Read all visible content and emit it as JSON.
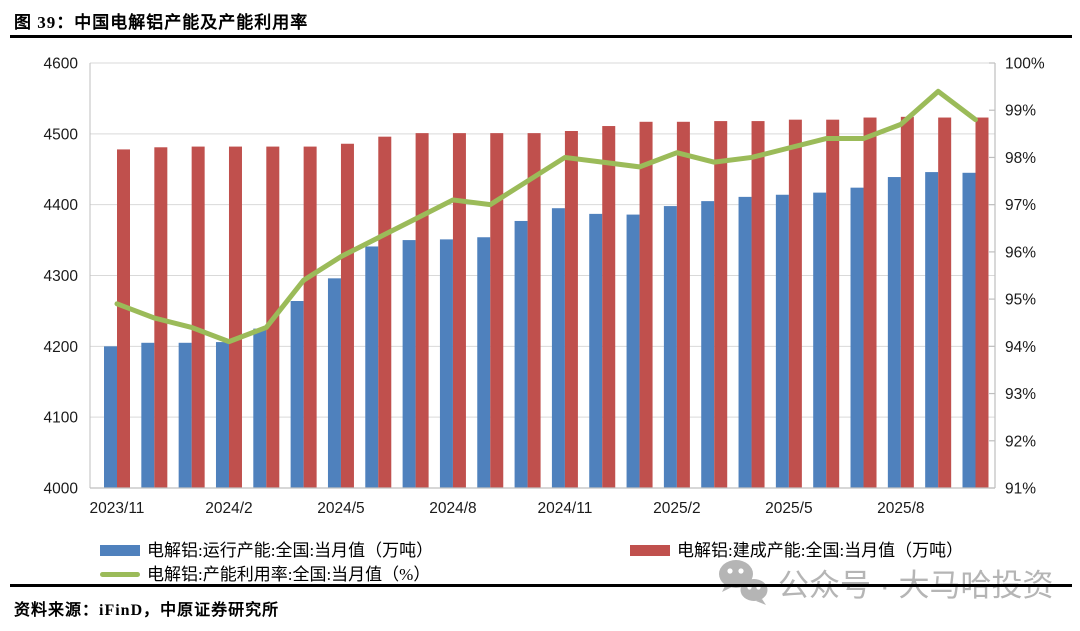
{
  "page": {
    "title": "图 39：中国电解铝产能及产能利用率",
    "source": "资料来源：iFinD，中原证券研究所",
    "watermark_text": "公众号 · 大马哈投资"
  },
  "colors": {
    "operating_bar": "#4F81BD",
    "built_bar": "#C0504D",
    "utilization_line": "#9BBB59",
    "gridline": "#D9D9D9",
    "axis_line": "#BFBFBF",
    "tick_text": "#1a1a1a",
    "rule": "#000000",
    "watermark": "#b5b5b5"
  },
  "chart_data": {
    "type": "bar",
    "title": "图 39：中国电解铝产能及产能利用率",
    "categories": [
      "2023/11",
      "2023/12",
      "2024/1",
      "2024/2",
      "2024/3",
      "2024/4",
      "2024/5",
      "2024/6",
      "2024/7",
      "2024/8",
      "2024/9",
      "2024/10",
      "2024/11",
      "2024/12",
      "2025/1",
      "2025/2",
      "2025/3",
      "2025/4",
      "2025/5",
      "2025/6",
      "2025/7",
      "2025/8",
      "2025/9",
      "2025/10"
    ],
    "series": [
      {
        "name": "电解铝:运行产能:全国:当月值（万吨）",
        "kind": "bar",
        "axis": "left",
        "color": "#4F81BD",
        "values": [
          4200,
          4205,
          4205,
          4206,
          4225,
          4264,
          4296,
          4341,
          4350,
          4351,
          4354,
          4377,
          4395,
          4387,
          4386,
          4398,
          4405,
          4411,
          4414,
          4417,
          4424,
          4439,
          4446,
          4445
        ]
      },
      {
        "name": "电解铝:建成产能:全国:当月值（万吨）",
        "kind": "bar",
        "axis": "left",
        "color": "#C0504D",
        "values": [
          4478,
          4481,
          4482,
          4482,
          4482,
          4482,
          4486,
          4496,
          4501,
          4501,
          4501,
          4501,
          4504,
          4511,
          4517,
          4517,
          4518,
          4518,
          4520,
          4520,
          4523,
          4524,
          4523,
          4523
        ]
      },
      {
        "name": "电解铝:产能利用率:全国:当月值（%）",
        "kind": "line",
        "axis": "right",
        "color": "#9BBB59",
        "values": [
          94.9,
          94.6,
          94.4,
          94.1,
          94.4,
          95.4,
          95.9,
          96.3,
          96.7,
          97.1,
          97.0,
          97.5,
          98.0,
          97.9,
          97.8,
          98.1,
          97.9,
          98.0,
          98.2,
          98.4,
          98.4,
          98.7,
          99.4,
          98.8
        ]
      }
    ],
    "left_axis": {
      "min": 4000,
      "max": 4600,
      "step": 100,
      "tick_labels": [
        "4000",
        "4100",
        "4200",
        "4300",
        "4400",
        "4500",
        "4600"
      ]
    },
    "right_axis": {
      "min": 91,
      "max": 100,
      "step": 1,
      "tick_labels": [
        "91%",
        "92%",
        "93%",
        "94%",
        "95%",
        "96%",
        "97%",
        "98%",
        "99%",
        "100%"
      ]
    },
    "x_axis": {
      "tick_labels": [
        "2023/11",
        "2024/2",
        "2024/5",
        "2024/8",
        "2024/11",
        "2025/2",
        "2025/5",
        "2025/8"
      ],
      "tick_indices": [
        0,
        3,
        6,
        9,
        12,
        15,
        18,
        21
      ]
    },
    "grid": true,
    "legend_position": "bottom"
  }
}
